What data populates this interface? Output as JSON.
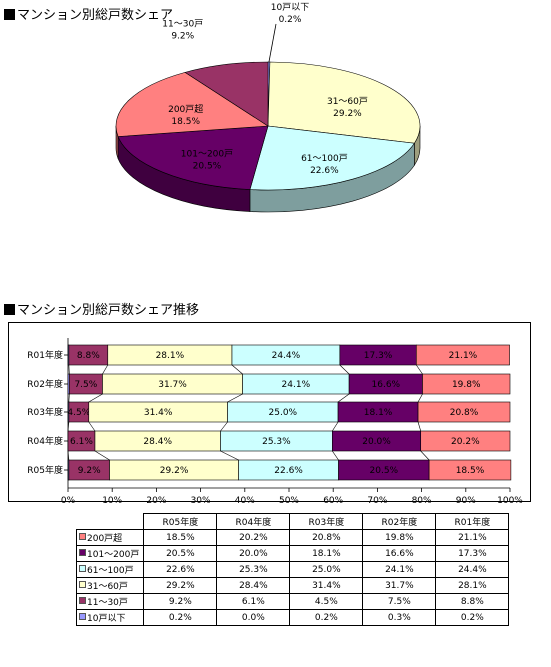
{
  "titles": {
    "pie": "マンション別総戸数シェア",
    "bar": "マンション別総戸数シェア推移"
  },
  "colors": {
    "10戸以下": "#9999ff",
    "11～30戸": "#993366",
    "31～60戸": "#ffffcc",
    "61～100戸": "#ccffff",
    "101～200戸": "#660066",
    "200戸超": "#ff8080"
  },
  "chart_data": [
    {
      "type": "pie",
      "title": "マンション別総戸数シェア",
      "slices": [
        {
          "label": "10戸以下",
          "value": 0.2,
          "value_label": "0.2%"
        },
        {
          "label": "31～60戸",
          "value": 29.2,
          "value_label": "29.2%"
        },
        {
          "label": "61～100戸",
          "value": 22.6,
          "value_label": "22.6%"
        },
        {
          "label": "101～200戸",
          "value": 20.5,
          "value_label": "20.5%"
        },
        {
          "label": "200戸超",
          "value": 18.5,
          "value_label": "18.5%"
        },
        {
          "label": "11～30戸",
          "value": 9.2,
          "value_label": "9.2%"
        }
      ]
    },
    {
      "type": "bar",
      "orientation": "horizontal-stacked-100",
      "title": "マンション別総戸数シェア推移",
      "categories": [
        "R01年度",
        "R02年度",
        "R03年度",
        "R04年度",
        "R05年度"
      ],
      "series": [
        {
          "name": "10戸以下",
          "values": [
            0.2,
            0.3,
            0.2,
            0.0,
            0.2
          ]
        },
        {
          "name": "11～30戸",
          "values": [
            8.8,
            7.5,
            4.5,
            6.1,
            9.2
          ]
        },
        {
          "name": "31～60戸",
          "values": [
            28.1,
            31.7,
            31.4,
            28.4,
            29.2
          ]
        },
        {
          "name": "61～100戸",
          "values": [
            24.4,
            24.1,
            25.0,
            25.3,
            22.6
          ]
        },
        {
          "name": "101～200戸",
          "values": [
            17.3,
            16.6,
            18.1,
            20.0,
            20.5
          ]
        },
        {
          "name": "200戸超",
          "values": [
            21.1,
            19.8,
            20.8,
            20.2,
            18.5
          ]
        }
      ],
      "xlim": [
        0,
        100
      ],
      "xticks": [
        "0%",
        "10%",
        "20%",
        "30%",
        "40%",
        "50%",
        "60%",
        "70%",
        "80%",
        "90%",
        "100%"
      ]
    }
  ],
  "table": {
    "columns": [
      "R05年度",
      "R04年度",
      "R03年度",
      "R02年度",
      "R01年度"
    ],
    "rows": [
      {
        "label": "200戸超",
        "values": [
          "18.5%",
          "20.2%",
          "20.8%",
          "19.8%",
          "21.1%"
        ]
      },
      {
        "label": "101～200戸",
        "values": [
          "20.5%",
          "20.0%",
          "18.1%",
          "16.6%",
          "17.3%"
        ]
      },
      {
        "label": "61～100戸",
        "values": [
          "22.6%",
          "25.3%",
          "25.0%",
          "24.1%",
          "24.4%"
        ]
      },
      {
        "label": "31～60戸",
        "values": [
          "29.2%",
          "28.4%",
          "31.4%",
          "31.7%",
          "28.1%"
        ]
      },
      {
        "label": "11～30戸",
        "values": [
          "9.2%",
          "6.1%",
          "4.5%",
          "7.5%",
          "8.8%"
        ]
      },
      {
        "label": "10戸以下",
        "values": [
          "0.2%",
          "0.0%",
          "0.2%",
          "0.3%",
          "0.2%"
        ]
      }
    ]
  }
}
